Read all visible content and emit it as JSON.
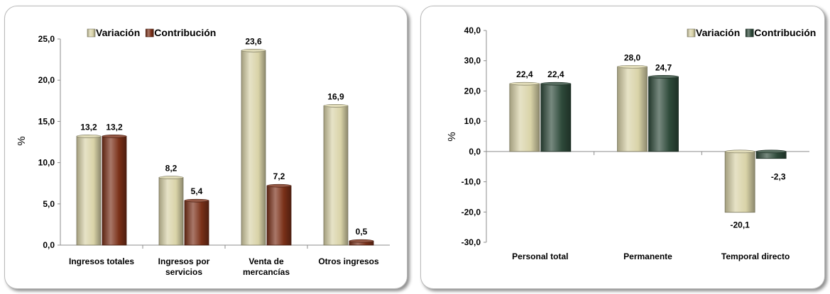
{
  "chart_data": [
    {
      "type": "bar",
      "title": "",
      "ylabel": "%",
      "xlabel": "",
      "ylim": [
        0,
        25
      ],
      "ytick_step": 5,
      "tick_labels": [
        "0,0",
        "5,0",
        "10,0",
        "15,0",
        "20,0",
        "25,0"
      ],
      "categories": [
        [
          "Ingresos totales"
        ],
        [
          "Ingresos por",
          "servicios"
        ],
        [
          "Venta de",
          "mercancías"
        ],
        [
          "Otros ingresos"
        ]
      ],
      "legend_position": "top",
      "series": [
        {
          "name": "Variación",
          "values": [
            13.2,
            8.2,
            23.6,
            16.9
          ],
          "labels": [
            "13,2",
            "8,2",
            "23,6",
            "16,9"
          ],
          "color": "#d9d3a8"
        },
        {
          "name": "Contribución",
          "values": [
            13.2,
            5.4,
            7.2,
            0.5
          ],
          "labels": [
            "13,2",
            "5,4",
            "7,2",
            "0,5"
          ],
          "color": "#7a3018"
        }
      ]
    },
    {
      "type": "bar",
      "title": "",
      "ylabel": "%",
      "xlabel": "",
      "ylim": [
        -30,
        40
      ],
      "ytick_step": 10,
      "tick_labels": [
        "-30,0",
        "-20,0",
        "-10,0",
        "0,0",
        "10,0",
        "20,0",
        "30,0",
        "40,0"
      ],
      "categories": [
        [
          "Personal total"
        ],
        [
          "Permanente"
        ],
        [
          "Temporal directo"
        ]
      ],
      "legend_position": "top-right",
      "series": [
        {
          "name": "Variación",
          "values": [
            22.4,
            28.0,
            -20.1
          ],
          "labels": [
            "22,4",
            "28,0",
            "-20,1"
          ],
          "color": "#d9d3a8"
        },
        {
          "name": "Contribución",
          "values": [
            22.4,
            24.7,
            -2.3
          ],
          "labels": [
            "22,4",
            "24,7",
            "-2,3"
          ],
          "color": "#2e4a3a"
        }
      ]
    }
  ]
}
